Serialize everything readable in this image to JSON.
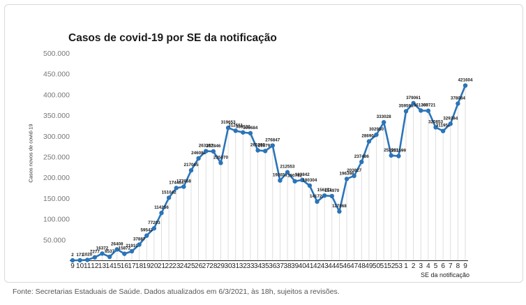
{
  "chart_data": {
    "type": "line",
    "title": "Casos de covid-19 por SE da notificação",
    "ylabel": "Casos novos de covid-19",
    "xlabel": "SE da notificação",
    "ylim": [
      0,
      500000
    ],
    "yticks": [
      "",
      "50.000",
      "100.000",
      "150.000",
      "200.000",
      "250.000",
      "300.000",
      "350.000",
      "400.000",
      "450.000",
      "500.000"
    ],
    "categories": [
      "9",
      "10",
      "11",
      "12",
      "13",
      "14",
      "15",
      "16",
      "17",
      "18",
      "19",
      "20",
      "21",
      "22",
      "23",
      "24",
      "25",
      "26",
      "27",
      "28",
      "29",
      "30",
      "31",
      "32",
      "33",
      "34",
      "35",
      "36",
      "37",
      "38",
      "39",
      "40",
      "41",
      "42",
      "43",
      "44",
      "45",
      "46",
      "47",
      "48",
      "49",
      "50",
      "51",
      "52",
      "53",
      "1",
      "2",
      "3",
      "4",
      "5",
      "6",
      "7",
      "8",
      "9"
    ],
    "series": [
      {
        "values": [
          2,
          171,
          1020,
          7277,
          16372,
          8537,
          26408,
          15872,
          21910,
          37887,
          59543,
          77203,
          114256,
          151042,
          174484,
          177668,
          217065,
          246088,
          263357,
          262846,
          235070,
          319653,
          312551,
          308536,
          306684,
          265290,
          263791,
          276847,
          192651,
          212553,
          190762,
          193842,
          180304,
          141726,
          156271,
          154970,
          117868,
          196398,
          203827,
          237486,
          286905,
          302950,
          333028,
          252901,
          251599,
          359593,
          379061,
          361305,
          360721,
          320853,
          311959,
          329394,
          378084,
          421604
        ],
        "labels": [
          "2",
          "171",
          "1020",
          "7277",
          "16372",
          "8537",
          "26408",
          "15872",
          "21910",
          "37887",
          "59543",
          "77203",
          "114256",
          "151042",
          "174484",
          "177668",
          "217065",
          "246088",
          "263357",
          "262846",
          "235070",
          "319653",
          "312551",
          "308536",
          "306684",
          "265290",
          "263791",
          "276847",
          "192651",
          "212553",
          "190762",
          "193842",
          "180304",
          "141726",
          "156271",
          "154970",
          "117868",
          "196398",
          "203827",
          "237486",
          "286905",
          "302950",
          "333028",
          "252901",
          "251599",
          "359593",
          "379061",
          "361305",
          "360721",
          "320853",
          "311959",
          "329394",
          "378084",
          "421604"
        ]
      }
    ],
    "color": "#2b74b8",
    "grid": false,
    "legend": "none"
  },
  "footer": {
    "source": "Fonte: Secretarias Estaduais de Saúde. Dados atualizados em 6/3/2021, às 18h, sujeitos a revisões."
  }
}
